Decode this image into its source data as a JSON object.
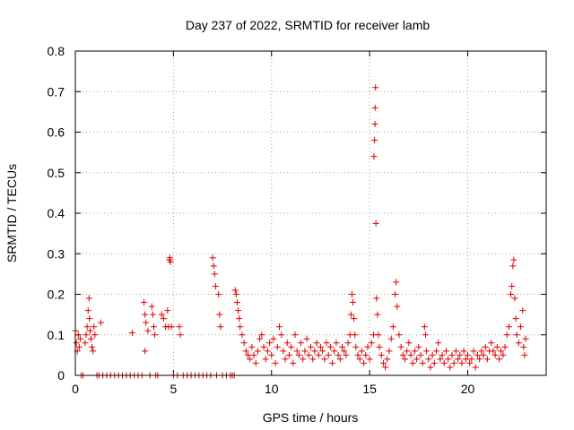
{
  "chart_data": {
    "type": "scatter",
    "title": "Day 237 of 2022, SRMTID for receiver lamb",
    "xlabel": "GPS time / hours",
    "ylabel": "SRMTID / TECUs",
    "xlim": [
      0,
      24
    ],
    "ylim": [
      0,
      0.8
    ],
    "xticks": [
      0,
      5,
      10,
      15,
      20
    ],
    "xtick_labels": [
      "0",
      "5",
      "10",
      "15",
      "20"
    ],
    "yticks": [
      0,
      0.1,
      0.2,
      0.3,
      0.4,
      0.5,
      0.6,
      0.7,
      0.8
    ],
    "ytick_labels": [
      "0",
      "0.1",
      "0.2",
      "0.3",
      "0.4",
      "0.5",
      "0.6",
      "0.7",
      "0.8"
    ],
    "grid": true,
    "marker": "+",
    "color": "#e00000",
    "series": [
      {
        "name": "lamb",
        "points": [
          [
            0.0,
            0.11
          ],
          [
            0.05,
            0.08
          ],
          [
            0.1,
            0.06
          ],
          [
            0.15,
            0.1
          ],
          [
            0.2,
            0.07
          ],
          [
            0.25,
            0.09
          ],
          [
            0.3,
            0.0
          ],
          [
            0.4,
            0.0
          ],
          [
            0.5,
            0.08
          ],
          [
            0.55,
            0.1
          ],
          [
            0.6,
            0.12
          ],
          [
            0.65,
            0.16
          ],
          [
            0.7,
            0.19
          ],
          [
            0.72,
            0.14
          ],
          [
            0.75,
            0.11
          ],
          [
            0.8,
            0.09
          ],
          [
            0.85,
            0.07
          ],
          [
            0.9,
            0.06
          ],
          [
            0.95,
            0.12
          ],
          [
            1.0,
            0.1
          ],
          [
            1.1,
            0.0
          ],
          [
            1.2,
            0.0
          ],
          [
            1.3,
            0.13
          ],
          [
            1.4,
            0.0
          ],
          [
            1.6,
            0.0
          ],
          [
            1.8,
            0.0
          ],
          [
            2.0,
            0.0
          ],
          [
            2.2,
            0.0
          ],
          [
            2.4,
            0.0
          ],
          [
            2.6,
            0.0
          ],
          [
            2.8,
            0.0
          ],
          [
            2.9,
            0.105
          ],
          [
            3.0,
            0.0
          ],
          [
            3.2,
            0.0
          ],
          [
            3.4,
            0.0
          ],
          [
            3.5,
            0.18
          ],
          [
            3.55,
            0.15
          ],
          [
            3.6,
            0.13
          ],
          [
            3.55,
            0.06
          ],
          [
            3.7,
            0.11
          ],
          [
            3.8,
            0.0
          ],
          [
            3.9,
            0.17
          ],
          [
            3.95,
            0.15
          ],
          [
            4.0,
            0.12
          ],
          [
            4.05,
            0.1
          ],
          [
            4.1,
            0.0
          ],
          [
            4.2,
            0.0
          ],
          [
            4.4,
            0.15
          ],
          [
            4.5,
            0.14
          ],
          [
            4.6,
            0.12
          ],
          [
            4.7,
            0.16
          ],
          [
            4.75,
            0.12
          ],
          [
            4.8,
            0.285
          ],
          [
            4.82,
            0.29
          ],
          [
            4.85,
            0.28
          ],
          [
            4.9,
            0.12
          ],
          [
            5.0,
            0.0
          ],
          [
            5.2,
            0.0
          ],
          [
            5.3,
            0.12
          ],
          [
            5.35,
            0.1
          ],
          [
            5.5,
            0.0
          ],
          [
            5.7,
            0.0
          ],
          [
            5.9,
            0.0
          ],
          [
            6.1,
            0.0
          ],
          [
            6.3,
            0.0
          ],
          [
            6.5,
            0.0
          ],
          [
            6.7,
            0.0
          ],
          [
            6.9,
            0.0
          ],
          [
            7.0,
            0.29
          ],
          [
            7.05,
            0.27
          ],
          [
            7.1,
            0.25
          ],
          [
            7.15,
            0.22
          ],
          [
            7.2,
            0.0
          ],
          [
            7.3,
            0.2
          ],
          [
            7.35,
            0.15
          ],
          [
            7.4,
            0.12
          ],
          [
            7.5,
            0.0
          ],
          [
            7.7,
            0.0
          ],
          [
            7.9,
            0.0
          ],
          [
            8.0,
            0.0
          ],
          [
            8.1,
            0.0
          ],
          [
            8.15,
            0.21
          ],
          [
            8.2,
            0.2
          ],
          [
            8.25,
            0.18
          ],
          [
            8.3,
            0.16
          ],
          [
            8.35,
            0.14
          ],
          [
            8.4,
            0.12
          ],
          [
            8.5,
            0.1
          ],
          [
            8.6,
            0.08
          ],
          [
            8.7,
            0.06
          ],
          [
            8.8,
            0.05
          ],
          [
            8.9,
            0.04
          ],
          [
            9.0,
            0.07
          ],
          [
            9.1,
            0.05
          ],
          [
            9.2,
            0.03
          ],
          [
            9.3,
            0.06
          ],
          [
            9.4,
            0.09
          ],
          [
            9.5,
            0.1
          ],
          [
            9.6,
            0.07
          ],
          [
            9.7,
            0.04
          ],
          [
            9.8,
            0.06
          ],
          [
            9.9,
            0.08
          ],
          [
            10.0,
            0.05
          ],
          [
            10.1,
            0.09
          ],
          [
            10.2,
            0.03
          ],
          [
            10.3,
            0.07
          ],
          [
            10.4,
            0.12
          ],
          [
            10.5,
            0.1
          ],
          [
            10.6,
            0.06
          ],
          [
            10.7,
            0.04
          ],
          [
            10.8,
            0.08
          ],
          [
            10.9,
            0.05
          ],
          [
            11.0,
            0.07
          ],
          [
            11.1,
            0.03
          ],
          [
            11.2,
            0.1
          ],
          [
            11.3,
            0.06
          ],
          [
            11.4,
            0.05
          ],
          [
            11.5,
            0.08
          ],
          [
            11.6,
            0.04
          ],
          [
            11.7,
            0.06
          ],
          [
            11.8,
            0.09
          ],
          [
            11.9,
            0.05
          ],
          [
            12.0,
            0.07
          ],
          [
            12.1,
            0.04
          ],
          [
            12.2,
            0.06
          ],
          [
            12.3,
            0.08
          ],
          [
            12.4,
            0.05
          ],
          [
            12.5,
            0.07
          ],
          [
            12.6,
            0.06
          ],
          [
            12.7,
            0.04
          ],
          [
            12.8,
            0.08
          ],
          [
            12.9,
            0.05
          ],
          [
            13.0,
            0.07
          ],
          [
            13.1,
            0.03
          ],
          [
            13.2,
            0.06
          ],
          [
            13.3,
            0.08
          ],
          [
            13.4,
            0.05
          ],
          [
            13.5,
            0.04
          ],
          [
            13.6,
            0.07
          ],
          [
            13.7,
            0.06
          ],
          [
            13.8,
            0.05
          ],
          [
            13.9,
            0.08
          ],
          [
            14.0,
            0.1
          ],
          [
            14.05,
            0.15
          ],
          [
            14.1,
            0.2
          ],
          [
            14.15,
            0.18
          ],
          [
            14.2,
            0.14
          ],
          [
            14.25,
            0.1
          ],
          [
            14.3,
            0.07
          ],
          [
            14.4,
            0.05
          ],
          [
            14.5,
            0.04
          ],
          [
            14.6,
            0.06
          ],
          [
            14.7,
            0.03
          ],
          [
            14.8,
            0.05
          ],
          [
            14.9,
            0.07
          ],
          [
            15.0,
            0.04
          ],
          [
            15.1,
            0.08
          ],
          [
            15.2,
            0.1
          ],
          [
            15.22,
            0.54
          ],
          [
            15.25,
            0.58
          ],
          [
            15.27,
            0.62
          ],
          [
            15.28,
            0.66
          ],
          [
            15.3,
            0.71
          ],
          [
            15.32,
            0.375
          ],
          [
            15.35,
            0.19
          ],
          [
            15.4,
            0.15
          ],
          [
            15.45,
            0.1
          ],
          [
            15.5,
            0.07
          ],
          [
            15.6,
            0.05
          ],
          [
            15.7,
            0.03
          ],
          [
            15.8,
            0.02
          ],
          [
            15.9,
            0.04
          ],
          [
            16.0,
            0.06
          ],
          [
            16.1,
            0.09
          ],
          [
            16.2,
            0.12
          ],
          [
            16.3,
            0.2
          ],
          [
            16.35,
            0.23
          ],
          [
            16.4,
            0.17
          ],
          [
            16.5,
            0.1
          ],
          [
            16.6,
            0.07
          ],
          [
            16.7,
            0.05
          ],
          [
            16.8,
            0.04
          ],
          [
            16.9,
            0.06
          ],
          [
            17.0,
            0.08
          ],
          [
            17.1,
            0.05
          ],
          [
            17.2,
            0.03
          ],
          [
            17.3,
            0.06
          ],
          [
            17.4,
            0.04
          ],
          [
            17.5,
            0.07
          ],
          [
            17.6,
            0.05
          ],
          [
            17.7,
            0.03
          ],
          [
            17.8,
            0.12
          ],
          [
            17.85,
            0.1
          ],
          [
            17.9,
            0.06
          ],
          [
            18.0,
            0.04
          ],
          [
            18.1,
            0.02
          ],
          [
            18.2,
            0.05
          ],
          [
            18.3,
            0.03
          ],
          [
            18.4,
            0.06
          ],
          [
            18.5,
            0.08
          ],
          [
            18.6,
            0.04
          ],
          [
            18.7,
            0.05
          ],
          [
            18.8,
            0.03
          ],
          [
            18.9,
            0.06
          ],
          [
            19.0,
            0.04
          ],
          [
            19.1,
            0.02
          ],
          [
            19.2,
            0.05
          ],
          [
            19.3,
            0.03
          ],
          [
            19.4,
            0.06
          ],
          [
            19.5,
            0.04
          ],
          [
            19.6,
            0.05
          ],
          [
            19.7,
            0.03
          ],
          [
            19.8,
            0.06
          ],
          [
            19.9,
            0.04
          ],
          [
            20.0,
            0.05
          ],
          [
            20.1,
            0.03
          ],
          [
            20.2,
            0.04
          ],
          [
            20.3,
            0.06
          ],
          [
            20.4,
            0.02
          ],
          [
            20.5,
            0.05
          ],
          [
            20.6,
            0.04
          ],
          [
            20.7,
            0.06
          ],
          [
            20.8,
            0.05
          ],
          [
            20.9,
            0.07
          ],
          [
            21.0,
            0.04
          ],
          [
            21.1,
            0.06
          ],
          [
            21.2,
            0.08
          ],
          [
            21.3,
            0.06
          ],
          [
            21.4,
            0.05
          ],
          [
            21.5,
            0.07
          ],
          [
            21.6,
            0.04
          ],
          [
            21.7,
            0.06
          ],
          [
            21.8,
            0.05
          ],
          [
            21.9,
            0.07
          ],
          [
            22.0,
            0.1
          ],
          [
            22.1,
            0.12
          ],
          [
            22.2,
            0.2
          ],
          [
            22.25,
            0.22
          ],
          [
            22.3,
            0.27
          ],
          [
            22.35,
            0.285
          ],
          [
            22.4,
            0.19
          ],
          [
            22.45,
            0.14
          ],
          [
            22.5,
            0.1
          ],
          [
            22.6,
            0.08
          ],
          [
            22.7,
            0.12
          ],
          [
            22.8,
            0.16
          ],
          [
            22.85,
            0.07
          ],
          [
            22.9,
            0.05
          ],
          [
            22.95,
            0.09
          ]
        ]
      }
    ]
  }
}
